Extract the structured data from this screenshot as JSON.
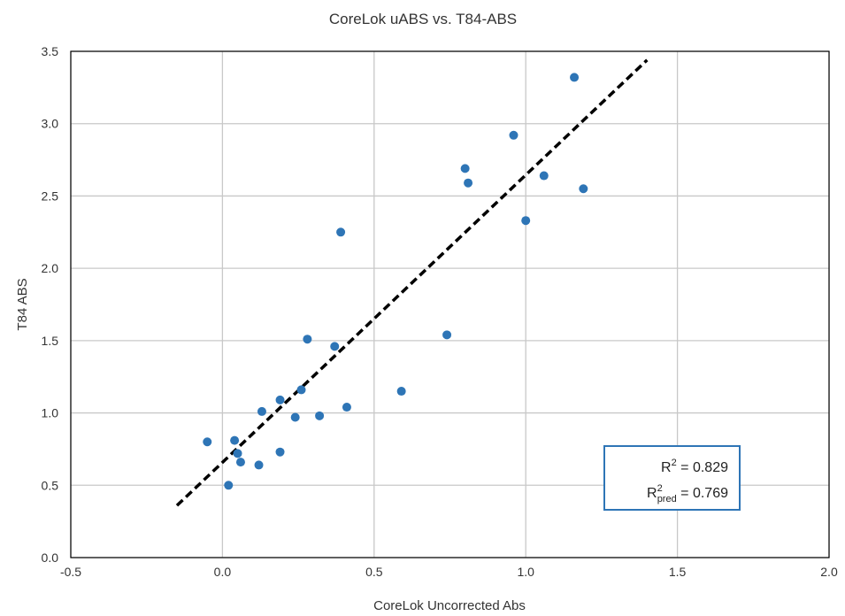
{
  "chart_data": {
    "type": "scatter",
    "title": "CoreLok uABS vs. T84-ABS",
    "xlabel": "CoreLok Uncorrected Abs",
    "ylabel": "T84 ABS",
    "xlim": [
      -0.5,
      2.0
    ],
    "ylim": [
      0.0,
      3.5
    ],
    "x_ticks": [
      "-0.5",
      "0.0",
      "0.5",
      "1.0",
      "1.5",
      "2.0"
    ],
    "y_ticks": [
      "0.0",
      "0.5",
      "1.0",
      "1.5",
      "2.0",
      "2.5",
      "3.0",
      "3.5"
    ],
    "grid": true,
    "series": [
      {
        "type": "scatter",
        "color": "#2e75b6",
        "points": [
          {
            "x": -0.05,
            "y": 0.8
          },
          {
            "x": 0.02,
            "y": 0.5
          },
          {
            "x": 0.04,
            "y": 0.81
          },
          {
            "x": 0.05,
            "y": 0.72
          },
          {
            "x": 0.06,
            "y": 0.66
          },
          {
            "x": 0.12,
            "y": 0.64
          },
          {
            "x": 0.13,
            "y": 1.01
          },
          {
            "x": 0.19,
            "y": 1.09
          },
          {
            "x": 0.19,
            "y": 0.73
          },
          {
            "x": 0.24,
            "y": 0.97
          },
          {
            "x": 0.26,
            "y": 1.16
          },
          {
            "x": 0.28,
            "y": 1.51
          },
          {
            "x": 0.32,
            "y": 0.98
          },
          {
            "x": 0.37,
            "y": 1.46
          },
          {
            "x": 0.39,
            "y": 2.25
          },
          {
            "x": 0.41,
            "y": 1.04
          },
          {
            "x": 0.59,
            "y": 1.15
          },
          {
            "x": 0.74,
            "y": 1.54
          },
          {
            "x": 0.8,
            "y": 2.69
          },
          {
            "x": 0.81,
            "y": 2.59
          },
          {
            "x": 0.96,
            "y": 2.92
          },
          {
            "x": 1.0,
            "y": 2.33
          },
          {
            "x": 1.06,
            "y": 2.64
          },
          {
            "x": 1.16,
            "y": 3.32
          },
          {
            "x": 1.19,
            "y": 2.55
          }
        ]
      },
      {
        "type": "line",
        "style": "dashed",
        "color": "#000000",
        "points": [
          {
            "x": -0.15,
            "y": 0.36
          },
          {
            "x": 1.4,
            "y": 3.44
          }
        ]
      }
    ],
    "annotation": {
      "r2_label": "R",
      "r2_sup": "2",
      "r2_value": " = 0.829",
      "r2pred_label": "R",
      "r2pred_sup": "2",
      "r2pred_sub": "pred",
      "r2pred_value": " = 0.769",
      "border_color": "#2e75b6",
      "placement": "bottom-right"
    }
  }
}
